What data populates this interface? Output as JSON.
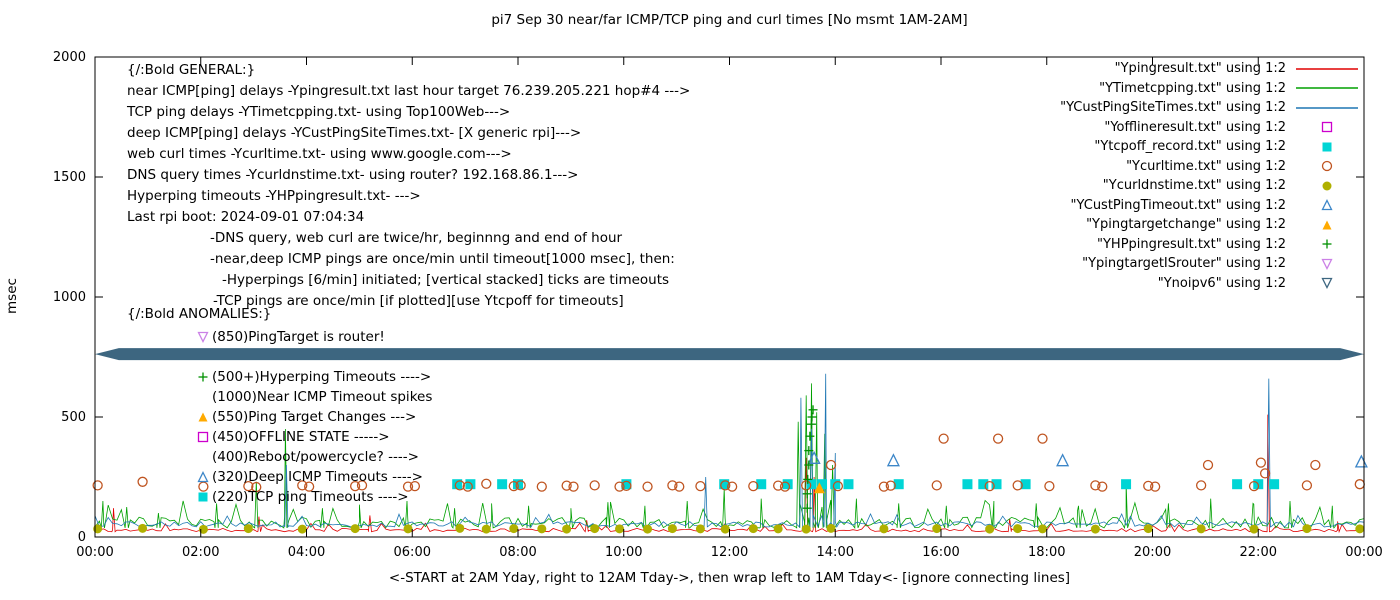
{
  "title": "pi7 Sep 30  near/far ICMP/TCP ping and curl times [No msmt 1AM-2AM]",
  "y_axis_label": "msec",
  "x_axis_label": "<-START at 2AM Yday, right to 12AM Tday->, then wrap left to 1AM Tday<- [ignore connecting lines]",
  "legend": [
    {
      "label": "\"Ypingresult.txt\" using 1:2",
      "marker": "line",
      "color": "#e00000"
    },
    {
      "label": "\"YTimetcpping.txt\" using 1:2",
      "marker": "line",
      "color": "#00a000"
    },
    {
      "label": "\"YCustPingSiteTimes.txt\" using 1:2",
      "marker": "line",
      "color": "#1f77b4"
    },
    {
      "label": "\"Yofflineresult.txt\" using 1:2",
      "marker": "square-open",
      "color": "#cc00cc"
    },
    {
      "label": "\"Ytcpoff_record.txt\" using 1:2",
      "marker": "square-filled",
      "color": "#00d5d5"
    },
    {
      "label": "\"Ycurltime.txt\" using 1:2",
      "marker": "circle-open",
      "color": "#bf5420"
    },
    {
      "label": "\"Ycurldnstime.txt\" using 1:2",
      "marker": "circle-filled",
      "color": "#b0b000"
    },
    {
      "label": "\"YCustPingTimeout.txt\" using 1:2",
      "marker": "triangle-up-open",
      "color": "#3c86c8"
    },
    {
      "label": "\"Ypingtargetchange\" using 1:2",
      "marker": "triangle-up-filled",
      "color": "#ffaa00"
    },
    {
      "label": "\"YHPpingresult.txt\" using 1:2",
      "marker": "plus",
      "color": "#009000"
    },
    {
      "label": "\"YpingtargetISrouter\" using 1:2",
      "marker": "triangle-down-open",
      "color": "#cb80e6"
    },
    {
      "label": "\"Ynoipv6\" using 1:2",
      "marker": "triangle-down-open",
      "color": "#3d6680"
    }
  ],
  "annotations": {
    "general": [
      "{/:Bold GENERAL:}",
      "near ICMP[ping] delays -Ypingresult.txt last hour target 76.239.205.221 hop#4 --->",
      "TCP ping delays -YTimetcpping.txt- using Top100Web--->",
      "deep ICMP[ping] delays -YCustPingSiteTimes.txt- [X generic rpi]--->",
      "web curl times -Ycurltime.txt- using www.google.com--->",
      "DNS query times -Ycurldnstime.txt- using router? 192.168.86.1--->",
      "Hyperping timeouts -YHPpingresult.txt- --->",
      "Last rpi boot: 2024-09-01 07:04:34",
      "-DNS query, web curl are twice/hr, beginnng and end of hour",
      "-near,deep ICMP pings are once/min until timeout[1000 msec], then:",
      "-Hyperpings [6/min] initiated; [vertical stacked] ticks are timeouts",
      "-TCP pings are once/min [if plotted][use Ytcpoff for timeouts]"
    ],
    "anomalies_header": "{/:Bold ANOMALIES:}",
    "anomalies": [
      {
        "marker": "triangle-down-open",
        "color": "#cb80e6",
        "text": "(850)PingTarget is router!"
      },
      {
        "marker": "none",
        "color": "",
        "text": ""
      },
      {
        "marker": "plus",
        "color": "#009000",
        "text": "(500+)Hyperping Timeouts ---->"
      },
      {
        "marker": "none",
        "color": "",
        "text": "(1000)Near ICMP Timeout spikes"
      },
      {
        "marker": "triangle-up-filled",
        "color": "#ffaa00",
        "text": "(550)Ping Target Changes --->"
      },
      {
        "marker": "square-open",
        "color": "#cc00cc",
        "text": "(450)OFFLINE STATE ----->"
      },
      {
        "marker": "none",
        "color": "",
        "text": "(400)Reboot/powercycle? ---->"
      },
      {
        "marker": "triangle-up-open",
        "color": "#3c86c8",
        "text": "(320)Deep ICMP Timeouts ---->"
      },
      {
        "marker": "square-filled",
        "color": "#00d5d5",
        "text": "(220)TCP ping Timeouts ---->"
      }
    ]
  },
  "chart_data": {
    "type": "line",
    "title": "pi7 Sep 30  near/far ICMP/TCP ping and curl times [No msmt 1AM-2AM]",
    "xlabel": "<-START at 2AM Yday, right to 12AM Tday->, then wrap left to 1AM Tday<- [ignore connecting lines]",
    "ylabel": "msec",
    "x_range": [
      0,
      24
    ],
    "y_range": [
      0,
      2000
    ],
    "x_ticks": [
      "00:00",
      "02:00",
      "04:00",
      "06:00",
      "08:00",
      "10:00",
      "12:00",
      "14:00",
      "16:00",
      "18:00",
      "20:00",
      "22:00",
      "00:00"
    ],
    "y_ticks": [
      0,
      500,
      1000,
      1500,
      2000
    ],
    "grid": false,
    "legend_position": "top-right",
    "series": [
      {
        "name": "Ypingresult.txt",
        "style": "noisy-line",
        "color": "#e00000",
        "baseline": 22,
        "jitter": 14,
        "seed": 11,
        "spikes": [
          [
            0.35,
            120
          ],
          [
            3.1,
            85
          ],
          [
            5.2,
            90
          ],
          [
            9.3,
            70
          ],
          [
            13.45,
            330
          ],
          [
            13.6,
            250
          ],
          [
            17.3,
            75
          ],
          [
            22.18,
            510
          ],
          [
            23.5,
            65
          ]
        ]
      },
      {
        "name": "YTimetcpping.txt",
        "style": "noisy-line",
        "color": "#00a000",
        "baseline": 38,
        "jitter": 45,
        "seed": 23,
        "spikes": [
          [
            0.15,
            150
          ],
          [
            0.6,
            125
          ],
          [
            1.2,
            100
          ],
          [
            2.3,
            140
          ],
          [
            3.05,
            230
          ],
          [
            3.6,
            450
          ],
          [
            4.3,
            120
          ],
          [
            5.0,
            135
          ],
          [
            5.9,
            150
          ],
          [
            6.8,
            120
          ],
          [
            7.5,
            140
          ],
          [
            8.2,
            130
          ],
          [
            9.0,
            120
          ],
          [
            9.7,
            145
          ],
          [
            10.4,
            130
          ],
          [
            11.2,
            150
          ],
          [
            11.9,
            200
          ],
          [
            12.6,
            160
          ],
          [
            13.3,
            480
          ],
          [
            13.45,
            590
          ],
          [
            13.55,
            640
          ],
          [
            13.65,
            520
          ],
          [
            13.8,
            430
          ],
          [
            13.95,
            300
          ],
          [
            14.4,
            160
          ],
          [
            15.2,
            140
          ],
          [
            16.1,
            130
          ],
          [
            17.0,
            150
          ],
          [
            17.8,
            140
          ],
          [
            18.6,
            130
          ],
          [
            19.5,
            230
          ],
          [
            20.3,
            140
          ],
          [
            21.1,
            160
          ],
          [
            21.9,
            140
          ],
          [
            22.6,
            150
          ],
          [
            23.4,
            130
          ]
        ]
      },
      {
        "name": "YCustPingSiteTimes.txt",
        "style": "noisy-line",
        "color": "#1f77b4",
        "baseline": 42,
        "jitter": 22,
        "seed": 37,
        "spikes": [
          [
            3.62,
            300
          ],
          [
            11.55,
            250
          ],
          [
            13.35,
            580
          ],
          [
            13.55,
            450
          ],
          [
            13.82,
            680
          ],
          [
            14.0,
            350
          ],
          [
            22.2,
            660
          ]
        ]
      },
      {
        "name": "Ytcpoff_record.txt",
        "style": "scatter",
        "marker": "square-filled",
        "color": "#00d5d5",
        "size": 10,
        "points": [
          [
            6.85,
            220
          ],
          [
            7.1,
            220
          ],
          [
            7.7,
            220
          ],
          [
            8.0,
            220
          ],
          [
            10.05,
            220
          ],
          [
            11.9,
            220
          ],
          [
            12.6,
            220
          ],
          [
            13.1,
            220
          ],
          [
            13.55,
            220
          ],
          [
            13.75,
            220
          ],
          [
            14.0,
            220
          ],
          [
            14.25,
            220
          ],
          [
            15.2,
            220
          ],
          [
            16.5,
            220
          ],
          [
            16.8,
            220
          ],
          [
            17.05,
            220
          ],
          [
            17.6,
            220
          ],
          [
            19.5,
            220
          ],
          [
            21.6,
            220
          ],
          [
            22.0,
            220
          ],
          [
            22.3,
            220
          ]
        ]
      },
      {
        "name": "Ycurltime.txt",
        "style": "scatter",
        "marker": "circle-open",
        "color": "#bf5420",
        "size": 9,
        "points": [
          [
            0.05,
            215
          ],
          [
            0.9,
            230
          ],
          [
            2.05,
            210
          ],
          [
            2.9,
            212
          ],
          [
            3.05,
            208
          ],
          [
            3.92,
            215
          ],
          [
            4.05,
            210
          ],
          [
            4.92,
            212
          ],
          [
            5.05,
            215
          ],
          [
            5.92,
            210
          ],
          [
            6.05,
            212
          ],
          [
            6.9,
            215
          ],
          [
            7.05,
            210
          ],
          [
            7.4,
            222
          ],
          [
            7.92,
            212
          ],
          [
            8.05,
            215
          ],
          [
            8.45,
            210
          ],
          [
            8.92,
            214
          ],
          [
            9.05,
            210
          ],
          [
            9.45,
            215
          ],
          [
            9.92,
            210
          ],
          [
            10.05,
            213
          ],
          [
            10.45,
            210
          ],
          [
            10.92,
            215
          ],
          [
            11.05,
            210
          ],
          [
            11.45,
            212
          ],
          [
            11.92,
            215
          ],
          [
            12.05,
            210
          ],
          [
            12.45,
            212
          ],
          [
            12.92,
            214
          ],
          [
            13.05,
            210
          ],
          [
            13.45,
            215
          ],
          [
            13.92,
            300
          ],
          [
            14.05,
            212
          ],
          [
            14.92,
            210
          ],
          [
            15.05,
            214
          ],
          [
            15.92,
            215
          ],
          [
            16.05,
            410
          ],
          [
            16.92,
            212
          ],
          [
            17.08,
            410
          ],
          [
            17.45,
            215
          ],
          [
            17.92,
            410
          ],
          [
            18.05,
            212
          ],
          [
            18.92,
            215
          ],
          [
            19.05,
            210
          ],
          [
            19.92,
            213
          ],
          [
            20.05,
            210
          ],
          [
            20.92,
            215
          ],
          [
            21.05,
            300
          ],
          [
            21.92,
            212
          ],
          [
            22.05,
            310
          ],
          [
            22.13,
            265
          ],
          [
            22.92,
            215
          ],
          [
            23.08,
            300
          ],
          [
            23.92,
            220
          ]
        ]
      },
      {
        "name": "Ycurldnstime.txt",
        "style": "scatter",
        "marker": "circle-filled",
        "color": "#b0b000",
        "size": 9,
        "points": [
          [
            0.05,
            34
          ],
          [
            0.9,
            36
          ],
          [
            2.05,
            32
          ],
          [
            2.9,
            35
          ],
          [
            3.92,
            33
          ],
          [
            4.92,
            35
          ],
          [
            5.92,
            34
          ],
          [
            6.9,
            36
          ],
          [
            7.4,
            33
          ],
          [
            7.92,
            35
          ],
          [
            8.45,
            34
          ],
          [
            8.92,
            33
          ],
          [
            9.45,
            35
          ],
          [
            9.92,
            34
          ],
          [
            10.45,
            33
          ],
          [
            10.92,
            35
          ],
          [
            11.45,
            34
          ],
          [
            11.92,
            33
          ],
          [
            12.45,
            35
          ],
          [
            12.92,
            34
          ],
          [
            13.45,
            33
          ],
          [
            13.92,
            36
          ],
          [
            14.92,
            34
          ],
          [
            15.92,
            35
          ],
          [
            16.92,
            33
          ],
          [
            17.45,
            35
          ],
          [
            17.92,
            34
          ],
          [
            18.92,
            33
          ],
          [
            19.92,
            35
          ],
          [
            20.92,
            34
          ],
          [
            21.92,
            33
          ],
          [
            22.92,
            35
          ],
          [
            23.92,
            34
          ]
        ]
      },
      {
        "name": "YCustPingTimeout.txt",
        "style": "scatter",
        "marker": "triangle-up-open",
        "color": "#3c86c8",
        "size": 11,
        "points": [
          [
            13.6,
            330
          ],
          [
            15.1,
            320
          ],
          [
            18.3,
            320
          ],
          [
            23.95,
            315
          ]
        ]
      },
      {
        "name": "Ypingtargetchange",
        "style": "scatter",
        "marker": "triangle-up-filled",
        "color": "#ffaa00",
        "size": 11,
        "points": [
          [
            13.7,
            205
          ]
        ]
      },
      {
        "name": "YHPpingresult.txt",
        "style": "scatter",
        "marker": "plus",
        "color": "#009000",
        "size": 9,
        "points": [
          [
            13.47,
            120
          ],
          [
            13.47,
            180
          ],
          [
            13.48,
            240
          ],
          [
            13.5,
            300
          ],
          [
            13.5,
            360
          ],
          [
            13.52,
            420
          ],
          [
            13.55,
            470
          ],
          [
            13.56,
            500
          ],
          [
            13.58,
            530
          ]
        ]
      },
      {
        "name": "Ynoipv6",
        "style": "band",
        "color": "#3d6680",
        "y_low": 737,
        "y_high": 787,
        "x_start": 0,
        "x_end": 24
      }
    ]
  }
}
